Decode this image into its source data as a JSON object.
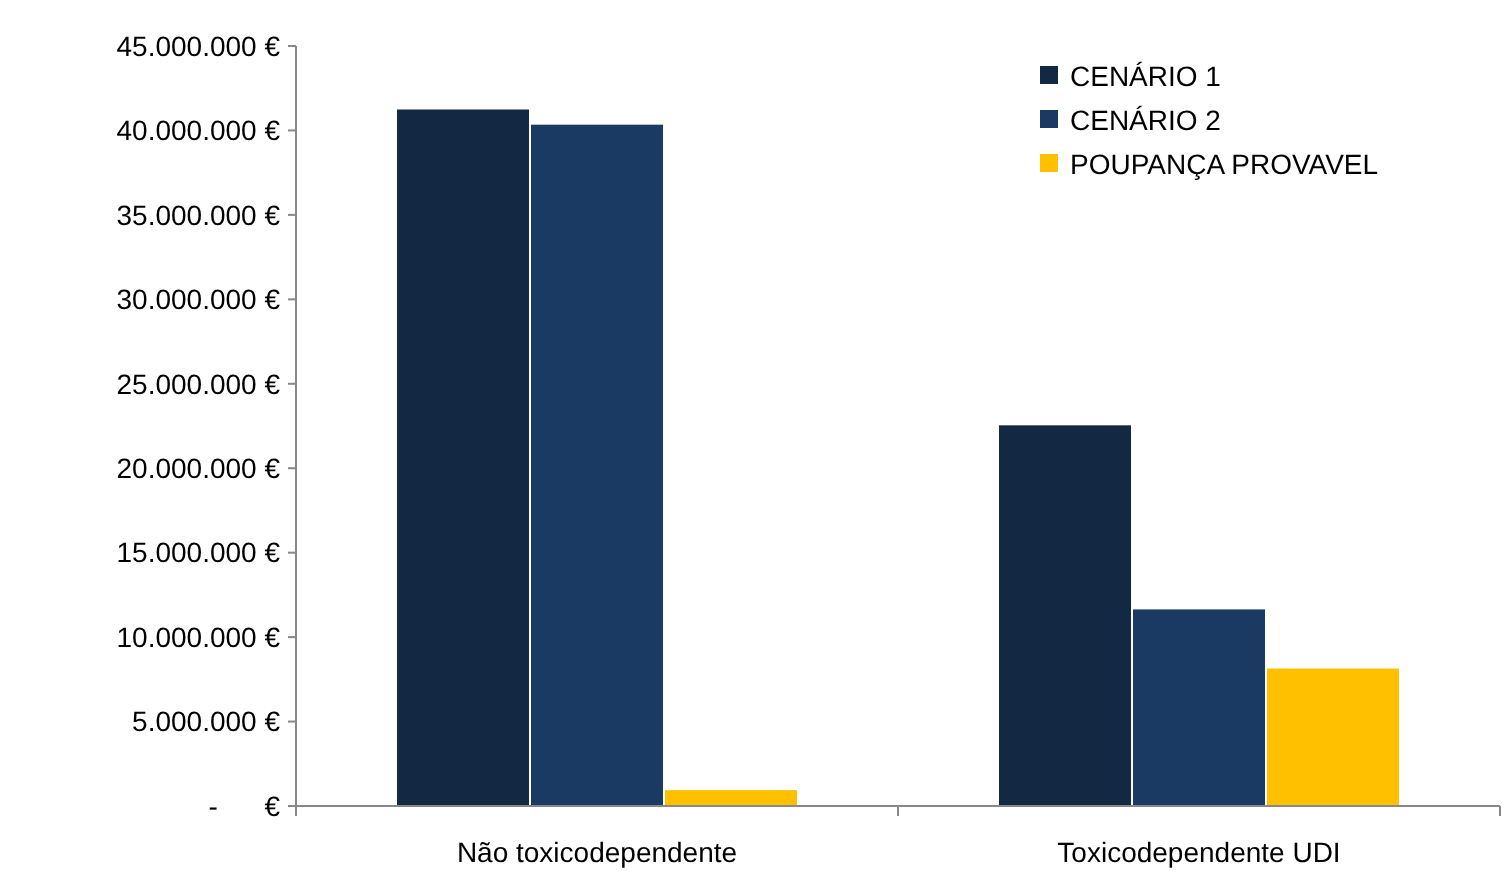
{
  "chart_data": {
    "type": "bar",
    "categories": [
      "Não toxicodependente",
      "Toxicodependente UDI"
    ],
    "series": [
      {
        "name": "CENÁRIO 1",
        "color": "#132843",
        "values": [
          41300000,
          22600000
        ]
      },
      {
        "name": "CENÁRIO 2",
        "color": "#1b3a63",
        "values": [
          40400000,
          11700000
        ]
      },
      {
        "name": "POUPANÇA PROVAVEL",
        "color": "#ffc000",
        "values": [
          1000000,
          8200000
        ]
      }
    ],
    "ylim": [
      0,
      45000000
    ],
    "yticks": [
      {
        "value": 0,
        "label": "-      €"
      },
      {
        "value": 5000000,
        "label": "5.000.000 €"
      },
      {
        "value": 10000000,
        "label": "10.000.000 €"
      },
      {
        "value": 15000000,
        "label": "15.000.000 €"
      },
      {
        "value": 20000000,
        "label": "20.000.000 €"
      },
      {
        "value": 25000000,
        "label": "25.000.000 €"
      },
      {
        "value": 30000000,
        "label": "30.000.000 €"
      },
      {
        "value": 35000000,
        "label": "35.000.000 €"
      },
      {
        "value": 40000000,
        "label": "40.000.000 €"
      },
      {
        "value": 45000000,
        "label": "45.000.000 €"
      }
    ],
    "grid": false,
    "legend": "top right"
  }
}
